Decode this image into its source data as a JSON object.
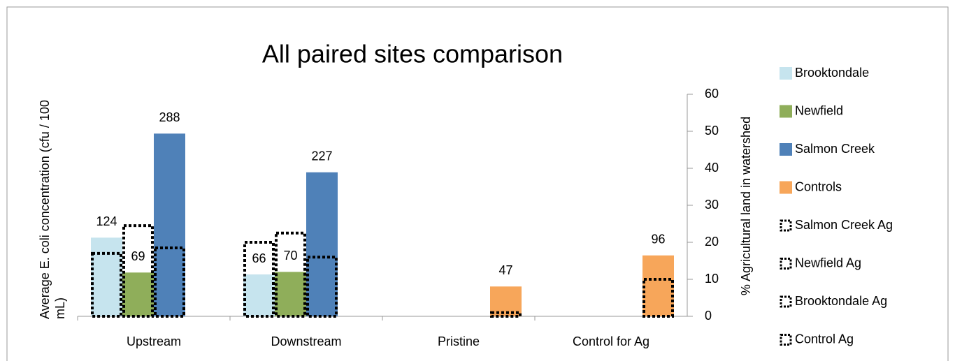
{
  "chart_data": {
    "type": "bar",
    "title": "All paired sites comparison",
    "y_label": "Average E. coli concentration (cfu / 100 mL)",
    "y2_label": "% Agricultural land in watershed",
    "categories": [
      "Upstream",
      "Downstream",
      "Pristine",
      "Control for Ag"
    ],
    "ylim": [
      0,
      350
    ],
    "y2lim": [
      0,
      60
    ],
    "y2ticks": [
      0,
      10,
      20,
      30,
      40,
      50,
      60
    ],
    "series": [
      {
        "name": "Brooktondale",
        "color": "#c6e4ee",
        "values": [
          124,
          66,
          null,
          null
        ]
      },
      {
        "name": "Newfield",
        "color": "#8fae5a",
        "values": [
          69,
          70,
          null,
          null
        ]
      },
      {
        "name": "Salmon Creek",
        "color": "#4f81b8",
        "values": [
          288,
          227,
          null,
          null
        ]
      },
      {
        "name": "Controls",
        "color": "#f7a65a",
        "values": [
          null,
          null,
          47,
          96
        ]
      },
      {
        "name": "Salmon Creek Ag",
        "color": "#000000",
        "axis": "y2",
        "values": [
          17,
          20,
          null,
          null
        ]
      },
      {
        "name": "Newfield Ag",
        "color": "#000000",
        "axis": "y2",
        "values": [
          24.5,
          22.5,
          null,
          null
        ]
      },
      {
        "name": "Brooktondale Ag",
        "color": "#000000",
        "axis": "y2",
        "values": [
          18.5,
          16,
          null,
          null
        ]
      },
      {
        "name": "Control Ag",
        "color": "#000000",
        "axis": "y2",
        "values": [
          null,
          null,
          1,
          10
        ]
      }
    ]
  }
}
